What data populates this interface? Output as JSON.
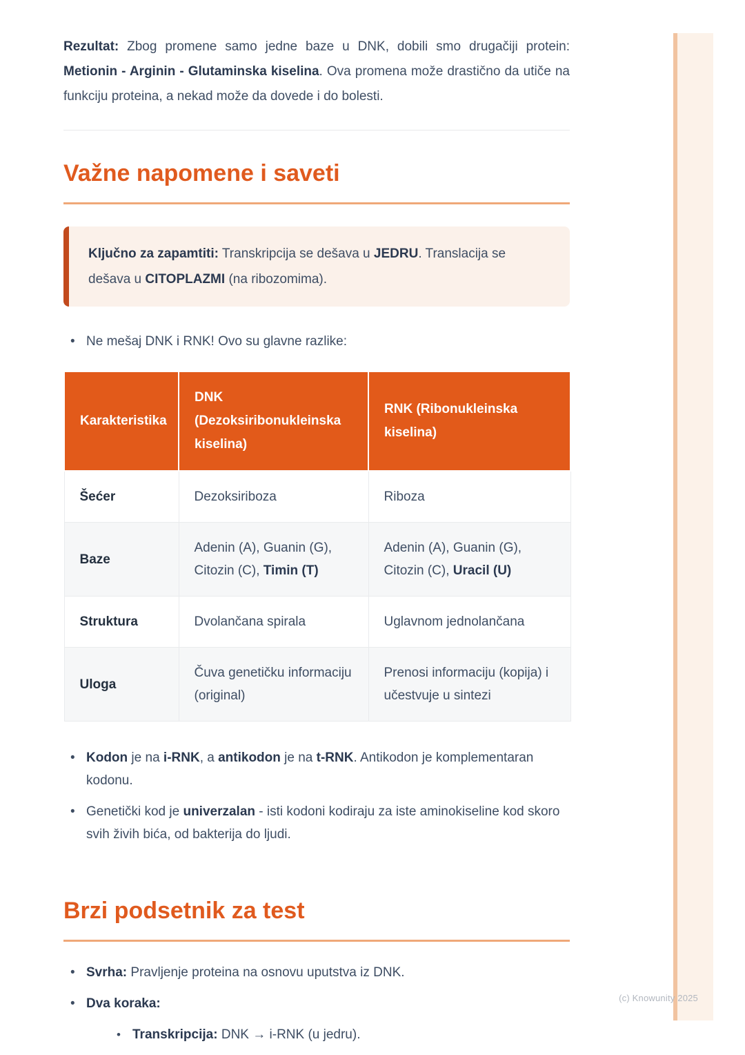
{
  "page": {
    "watermark": "(c) Knowunity 2025",
    "accent_color": "#e25a1a",
    "callout_bg_color": "#fbf1ea",
    "callout_border_color": "#c24a1d",
    "stripe_color": "#fcf2e9"
  },
  "intro_paragraph": {
    "segments": [
      {
        "t": "Rezultat:",
        "b": true
      },
      {
        "t": " Zbog promene samo jedne baze u DNK, dobili smo drugačiji protein: ",
        "b": false
      },
      {
        "t": "Metionin - Arginin - Glutaminska kiselina",
        "b": true
      },
      {
        "t": ". Ova promena može drastično da utiče na funkciju proteina, a nekad može da dovede i do bolesti.",
        "b": false
      }
    ]
  },
  "section1": {
    "title": "Važne napomene i saveti",
    "callout": {
      "segments": [
        {
          "t": "Ključno za zapamtiti:",
          "b": true
        },
        {
          "t": " Transkripcija se dešava u ",
          "b": false
        },
        {
          "t": "JEDRU",
          "b": true
        },
        {
          "t": ". Translacija se dešava u ",
          "b": false
        },
        {
          "t": "CITOPLAZMI",
          "b": true
        },
        {
          "t": " (na ribozomima).",
          "b": false
        }
      ]
    },
    "bullet_intro": {
      "segments": [
        {
          "t": "Ne mešaj DNK i RNK! Ovo su glavne razlike:",
          "b": false
        }
      ]
    },
    "table": {
      "header_col1": "Karakteristika",
      "header_col2_line1": "DNK",
      "header_col2_line2": "(Dezoksiribonukleinska kiselina)",
      "header_col3": "RNK (Ribonukleinska kiselina)",
      "rows": [
        {
          "label": "Šećer",
          "dnk": [
            {
              "t": "Dezoksiriboza",
              "b": false
            }
          ],
          "rnk": [
            {
              "t": "Riboza",
              "b": false
            }
          ]
        },
        {
          "label": "Baze",
          "dnk": [
            {
              "t": "Adenin (A), Guanin (G), Citozin (C), ",
              "b": false
            },
            {
              "t": "Timin (T)",
              "b": true
            }
          ],
          "rnk": [
            {
              "t": "Adenin (A), Guanin (G), Citozin (C), ",
              "b": false
            },
            {
              "t": "Uracil (U)",
              "b": true
            }
          ]
        },
        {
          "label": "Struktura",
          "dnk": [
            {
              "t": "Dvolančana spirala",
              "b": false
            }
          ],
          "rnk": [
            {
              "t": "Uglavnom jednolančana",
              "b": false
            }
          ]
        },
        {
          "label": "Uloga",
          "dnk": [
            {
              "t": "Čuva genetičku informaciju (original)",
              "b": false
            }
          ],
          "rnk": [
            {
              "t": "Prenosi informaciju (kopija) i učestvuje u sintezi",
              "b": false
            }
          ]
        }
      ]
    },
    "bullets": [
      {
        "segments": [
          {
            "t": "Kodon",
            "b": true
          },
          {
            "t": " je na ",
            "b": false
          },
          {
            "t": "i-RNK",
            "b": true
          },
          {
            "t": ", a ",
            "b": false
          },
          {
            "t": "antikodon",
            "b": true
          },
          {
            "t": " je na ",
            "b": false
          },
          {
            "t": "t-RNK",
            "b": true
          },
          {
            "t": ". Antikodon je komplementaran kodonu.",
            "b": false
          }
        ]
      },
      {
        "segments": [
          {
            "t": "Genetički kod je ",
            "b": false
          },
          {
            "t": "univerzalan",
            "b": true
          },
          {
            "t": " - isti kodoni kodiraju za iste aminokiseline kod skoro svih živih bića, od bakterija do ljudi.",
            "b": false
          }
        ]
      }
    ]
  },
  "section2": {
    "title": "Brzi podsetnik za test",
    "bullets": [
      {
        "segments": [
          {
            "t": "Svrha:",
            "b": true
          },
          {
            "t": " Pravljenje proteina na osnovu uputstva iz DNK.",
            "b": false
          }
        ]
      },
      {
        "segments": [
          {
            "t": "Dva koraka:",
            "b": true
          }
        ]
      }
    ],
    "sub_bullets": [
      {
        "segments": [
          {
            "t": "Transkripcija:",
            "b": true
          },
          {
            "t": " DNK → i-RNK (u jedru).",
            "b": false
          }
        ]
      }
    ]
  }
}
